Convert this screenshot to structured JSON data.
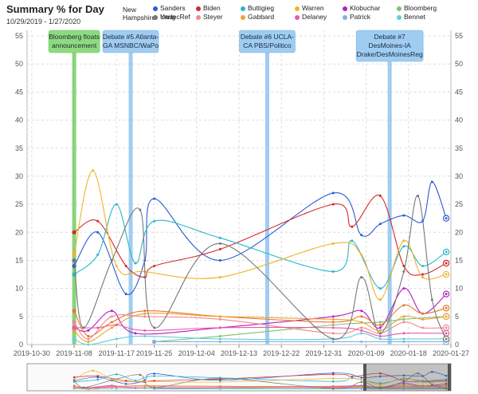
{
  "header": {
    "title": "Summary % for Day",
    "date_range": "10/29/2019 - 1/27/2020",
    "region_label": "New Hampshire"
  },
  "colors": {
    "Sanders": "#2a5bd7",
    "Biden": "#d62728",
    "Buttigieg": "#27b7c9",
    "Warren": "#f0b429",
    "Klobuchar": "#b31fc4",
    "Bloomberg": "#7dc36b",
    "Yang": "#e8782a",
    "Steyer": "#f08a8a",
    "Gabbard": "#f0a030",
    "Delaney": "#e85aa8",
    "Patrick": "#7fb2e8",
    "Bennet": "#5ed0d8",
    "UndecRef": "#777777"
  },
  "chart_data": {
    "type": "line",
    "x_ticks": [
      "2019-10-30",
      "2019-11-08",
      "2019-11-17",
      "2019-11-25",
      "2019-12-04",
      "2019-12-13",
      "2019-12-22",
      "2019-12-31",
      "2020-01-09",
      "2020-01-18",
      "2020-01-27"
    ],
    "xlim": [
      "2019-10-29",
      "2020-01-27"
    ],
    "ylim": [
      0,
      56
    ],
    "y_ticks": [
      0,
      5,
      10,
      15,
      20,
      25,
      30,
      35,
      40,
      45,
      50,
      55
    ],
    "grid": true,
    "legend_position": "top",
    "annotations": [
      {
        "date": "2019-11-08",
        "label": "Bloomberg floats announcement",
        "lines": [
          "Bloomberg floats",
          "announcement"
        ],
        "style": "green"
      },
      {
        "date": "2019-11-20",
        "label": "Debate #5 Atlanta-GA MSNBC/WaPo",
        "lines": [
          "Debate #5 Atlanta-",
          "GA MSNBC/WaPo"
        ],
        "style": "blue"
      },
      {
        "date": "2019-12-19",
        "label": "Debate #6 UCLA-CA PBS/Politico",
        "lines": [
          "Debate #6 UCLA-",
          "CA PBS/Politico"
        ],
        "style": "blue"
      },
      {
        "date": "2020-01-14",
        "label": "Debate #7 DesMoines-IA Drake/DesMoinesReg",
        "lines": [
          "Debate #7",
          "DesMoines-IA",
          "Drake/DesMoinesReg"
        ],
        "style": "blue"
      }
    ],
    "series": [
      {
        "name": "Sanders",
        "points": [
          [
            "2019-11-08",
            14
          ],
          [
            "2019-11-13",
            20
          ],
          [
            "2019-11-19",
            9
          ],
          [
            "2019-11-23",
            15
          ],
          [
            "2019-11-25",
            26
          ],
          [
            "2019-12-09",
            15
          ],
          [
            "2020-01-02",
            27
          ],
          [
            "2020-01-08",
            19.5
          ],
          [
            "2020-01-12",
            21.5
          ],
          [
            "2020-01-17",
            23
          ],
          [
            "2020-01-21",
            22
          ],
          [
            "2020-01-23",
            29
          ],
          [
            "2020-01-26",
            22.5
          ]
        ]
      },
      {
        "name": "Biden",
        "points": [
          [
            "2019-11-08",
            20
          ],
          [
            "2019-11-13",
            22
          ],
          [
            "2019-11-19",
            14
          ],
          [
            "2019-11-23",
            12
          ],
          [
            "2019-11-25",
            14
          ],
          [
            "2019-12-09",
            17
          ],
          [
            "2020-01-02",
            25
          ],
          [
            "2020-01-06",
            21
          ],
          [
            "2020-01-12",
            26.5
          ],
          [
            "2020-01-17",
            14
          ],
          [
            "2020-01-21",
            12.5
          ],
          [
            "2020-01-26",
            14.5
          ]
        ]
      },
      {
        "name": "Buttigieg",
        "points": [
          [
            "2019-11-08",
            12.5
          ],
          [
            "2019-11-13",
            16
          ],
          [
            "2019-11-17",
            25
          ],
          [
            "2019-11-21",
            14.5
          ],
          [
            "2019-11-25",
            22
          ],
          [
            "2019-12-09",
            19
          ],
          [
            "2020-01-02",
            13
          ],
          [
            "2020-01-06",
            18.5
          ],
          [
            "2020-01-12",
            10
          ],
          [
            "2020-01-17",
            17.5
          ],
          [
            "2020-01-21",
            14
          ],
          [
            "2020-01-26",
            16.5
          ]
        ]
      },
      {
        "name": "Warren",
        "points": [
          [
            "2019-11-08",
            16
          ],
          [
            "2019-11-12",
            31
          ],
          [
            "2019-11-17",
            14
          ],
          [
            "2019-11-23",
            13
          ],
          [
            "2019-12-09",
            12
          ],
          [
            "2020-01-02",
            18
          ],
          [
            "2020-01-08",
            16
          ],
          [
            "2020-01-12",
            8
          ],
          [
            "2020-01-17",
            18.5
          ],
          [
            "2020-01-21",
            12
          ],
          [
            "2020-01-26",
            12.5
          ]
        ]
      },
      {
        "name": "Klobuchar",
        "points": [
          [
            "2019-11-08",
            3
          ],
          [
            "2019-11-11",
            2.5
          ],
          [
            "2019-11-16",
            6
          ],
          [
            "2019-11-21",
            2
          ],
          [
            "2019-12-09",
            3
          ],
          [
            "2020-01-02",
            5
          ],
          [
            "2020-01-08",
            6
          ],
          [
            "2020-01-12",
            3
          ],
          [
            "2020-01-17",
            10
          ],
          [
            "2020-01-21",
            5.5
          ],
          [
            "2020-01-26",
            9
          ]
        ]
      },
      {
        "name": "Bloomberg",
        "points": [
          [
            "2019-11-25",
            0.5
          ],
          [
            "2019-12-09",
            1.5
          ],
          [
            "2020-01-02",
            3.5
          ],
          [
            "2020-01-12",
            4
          ],
          [
            "2020-01-17",
            4.5
          ],
          [
            "2020-01-26",
            5
          ]
        ]
      },
      {
        "name": "Yang",
        "points": [
          [
            "2019-11-08",
            6
          ],
          [
            "2019-11-11",
            1.5
          ],
          [
            "2019-11-16",
            4
          ],
          [
            "2019-11-23",
            6
          ],
          [
            "2019-12-09",
            5
          ],
          [
            "2020-01-02",
            4
          ],
          [
            "2020-01-08",
            5
          ],
          [
            "2020-01-12",
            3.5
          ],
          [
            "2020-01-17",
            7
          ],
          [
            "2020-01-21",
            5.5
          ],
          [
            "2020-01-26",
            6.5
          ]
        ]
      },
      {
        "name": "Steyer",
        "points": [
          [
            "2019-11-08",
            4
          ],
          [
            "2019-11-11",
            1
          ],
          [
            "2019-11-16",
            5
          ],
          [
            "2019-11-23",
            5
          ],
          [
            "2019-12-09",
            4.5
          ],
          [
            "2020-01-02",
            2
          ],
          [
            "2020-01-08",
            3
          ],
          [
            "2020-01-12",
            2
          ],
          [
            "2020-01-17",
            4
          ],
          [
            "2020-01-21",
            3
          ],
          [
            "2020-01-26",
            3
          ]
        ]
      },
      {
        "name": "Gabbard",
        "points": [
          [
            "2019-11-08",
            2.5
          ],
          [
            "2019-11-11",
            0.5
          ],
          [
            "2019-11-16",
            3
          ],
          [
            "2019-11-23",
            5.5
          ],
          [
            "2019-12-09",
            5
          ],
          [
            "2020-01-02",
            4.5
          ],
          [
            "2020-01-08",
            4
          ],
          [
            "2020-01-12",
            2.5
          ],
          [
            "2020-01-17",
            5
          ],
          [
            "2020-01-21",
            4.5
          ],
          [
            "2020-01-26",
            5
          ]
        ]
      },
      {
        "name": "Delaney",
        "points": [
          [
            "2019-11-08",
            3
          ],
          [
            "2019-11-13",
            3
          ],
          [
            "2019-11-17",
            3.5
          ],
          [
            "2019-11-23",
            2.5
          ],
          [
            "2019-12-09",
            3
          ],
          [
            "2020-01-02",
            3
          ],
          [
            "2020-01-08",
            2.5
          ],
          [
            "2020-01-12",
            1.5
          ],
          [
            "2020-01-17",
            2
          ],
          [
            "2020-01-26",
            2
          ]
        ]
      },
      {
        "name": "Patrick",
        "points": [
          [
            "2019-11-25",
            0.5
          ],
          [
            "2019-12-09",
            0.5
          ],
          [
            "2020-01-02",
            0.5
          ],
          [
            "2020-01-08",
            0.5
          ],
          [
            "2020-01-17",
            0.5
          ],
          [
            "2020-01-26",
            0.5
          ]
        ]
      },
      {
        "name": "Bennet",
        "points": [
          [
            "2019-11-08",
            1
          ],
          [
            "2019-11-11",
            0
          ],
          [
            "2019-11-17",
            1
          ],
          [
            "2019-11-23",
            1.5
          ],
          [
            "2019-12-09",
            1
          ],
          [
            "2020-01-02",
            1
          ],
          [
            "2020-01-08",
            2
          ],
          [
            "2020-01-12",
            1
          ],
          [
            "2020-01-17",
            1
          ],
          [
            "2020-01-26",
            1
          ]
        ]
      },
      {
        "name": "UndecRef",
        "points": [
          [
            "2019-11-08",
            15
          ],
          [
            "2019-11-10",
            3
          ],
          [
            "2019-11-16",
            15
          ],
          [
            "2019-11-22",
            24
          ],
          [
            "2019-11-25",
            3
          ],
          [
            "2019-12-09",
            18
          ],
          [
            "2020-01-02",
            1
          ],
          [
            "2020-01-08",
            12
          ],
          [
            "2020-01-12",
            2
          ],
          [
            "2020-01-17",
            13
          ],
          [
            "2020-01-20",
            26.5
          ],
          [
            "2020-01-23",
            8
          ],
          [
            "2020-01-26",
            1
          ]
        ]
      }
    ]
  }
}
